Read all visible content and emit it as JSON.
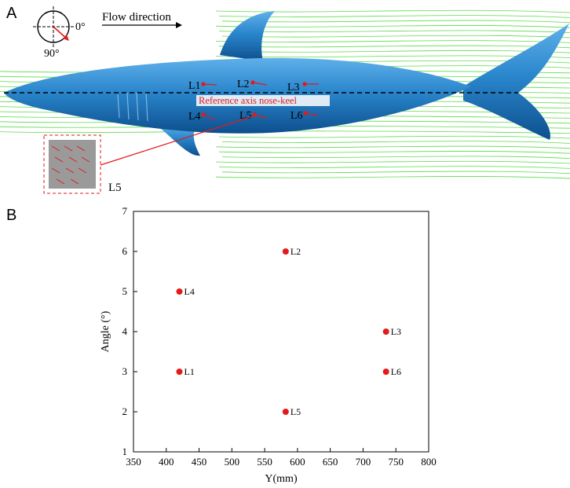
{
  "panel_a": {
    "label": "A",
    "flow_direction": "Flow direction",
    "angle_0": "0°",
    "angle_90": "90°",
    "reference_axis": "Reference axis nose-keel",
    "inset_label": "L5",
    "locations": [
      "L1",
      "L2",
      "L3",
      "L4",
      "L5",
      "L6"
    ],
    "colors": {
      "body": "#2a86cc",
      "streamlines": "#3dd62a",
      "annotation": "#e31a1c"
    }
  },
  "panel_b": {
    "label": "B"
  },
  "chart_data": {
    "type": "scatter",
    "xlabel": "Y(mm)",
    "ylabel": "Angle (°)",
    "xlim": [
      350,
      800
    ],
    "ylim": [
      1,
      7
    ],
    "xticks": [
      350,
      400,
      450,
      500,
      550,
      600,
      650,
      700,
      750,
      800
    ],
    "yticks": [
      1,
      2,
      3,
      4,
      5,
      6,
      7
    ],
    "marker_color": "#e31a1c",
    "points": [
      {
        "label": "L1",
        "x": 420,
        "y": 3
      },
      {
        "label": "L2",
        "x": 582,
        "y": 6
      },
      {
        "label": "L3",
        "x": 735,
        "y": 4
      },
      {
        "label": "L4",
        "x": 420,
        "y": 5
      },
      {
        "label": "L5",
        "x": 582,
        "y": 2
      },
      {
        "label": "L6",
        "x": 735,
        "y": 3
      }
    ]
  }
}
